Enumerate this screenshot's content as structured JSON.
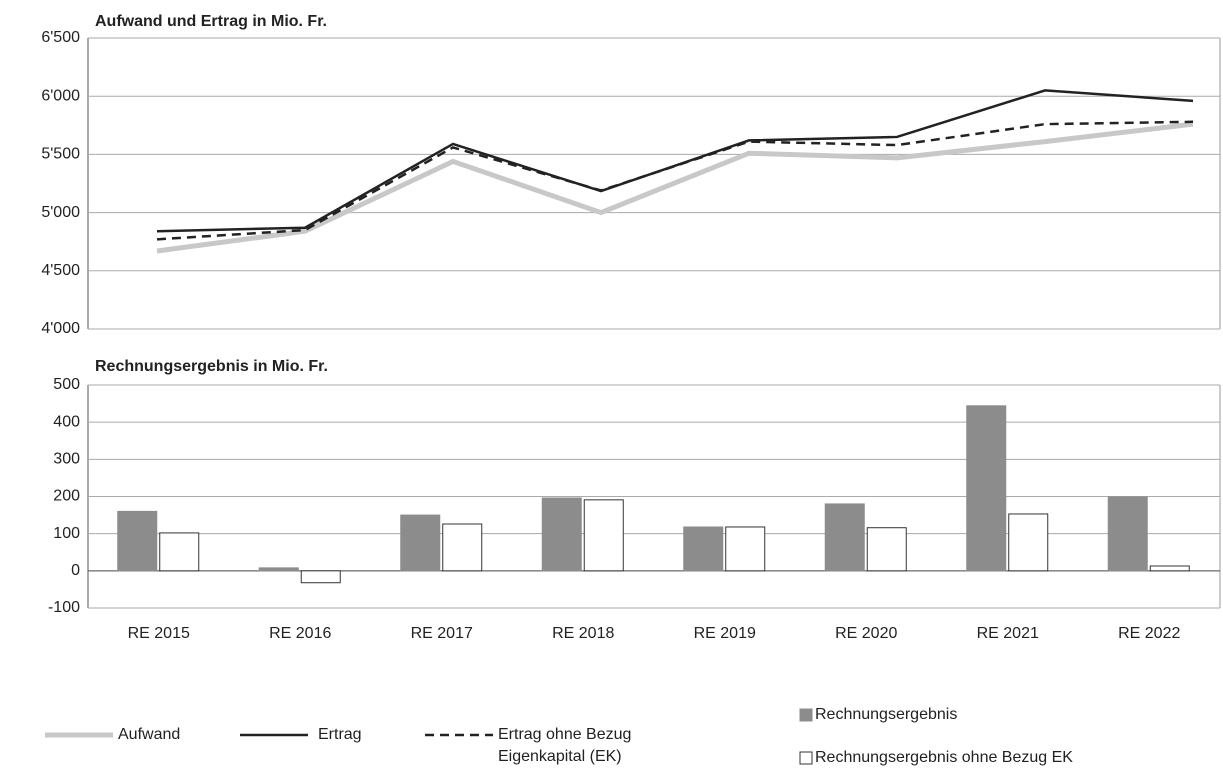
{
  "chart_data": [
    {
      "type": "line",
      "title": "Aufwand und Ertrag in Mio. Fr.",
      "series": [
        {
          "name": "Aufwand",
          "color": "#c8c8c8",
          "values": [
            4670,
            4840,
            5440,
            5000,
            5510,
            5470,
            5610,
            5760
          ]
        },
        {
          "name": "Ertrag",
          "color": "#222222",
          "values": [
            4840,
            4870,
            5590,
            5185,
            5620,
            5650,
            6050,
            5960
          ]
        },
        {
          "name": "Ertrag ohne Bezug Eigenkapital (EK)",
          "color": "#222222",
          "dashed": true,
          "values": [
            4770,
            4850,
            5560,
            5190,
            5610,
            5580,
            5760,
            5780
          ]
        }
      ],
      "ylim": [
        4000,
        6500
      ],
      "yticks": [
        {
          "value": 4000,
          "label": "4'000"
        },
        {
          "value": 4500,
          "label": "4'500"
        },
        {
          "value": 5000,
          "label": "5'000"
        },
        {
          "value": 5500,
          "label": "5'500"
        },
        {
          "value": 6000,
          "label": "6'000"
        },
        {
          "value": 6500,
          "label": "6'500"
        }
      ],
      "grid": true
    },
    {
      "type": "bar",
      "title": "Rechnungsergebnis in Mio. Fr.",
      "categories": [
        "RE 2015",
        "RE 2016",
        "RE 2017",
        "RE 2018",
        "RE 2019",
        "RE 2020",
        "RE 2021",
        "RE 2022"
      ],
      "series": [
        {
          "name": "Rechnungsergebnis",
          "color": "#8c8c8c",
          "values": [
            160,
            8,
            150,
            196,
            118,
            180,
            444,
            199
          ]
        },
        {
          "name": "Rechnungsergebnis ohne Bezug EK",
          "color": "#ffffff",
          "values": [
            102,
            -32,
            126,
            191,
            118,
            116,
            153,
            13
          ]
        }
      ],
      "ylim": [
        -100,
        500
      ],
      "yticks": [
        -100,
        0,
        100,
        200,
        300,
        400,
        500
      ],
      "grid": true
    }
  ]
}
